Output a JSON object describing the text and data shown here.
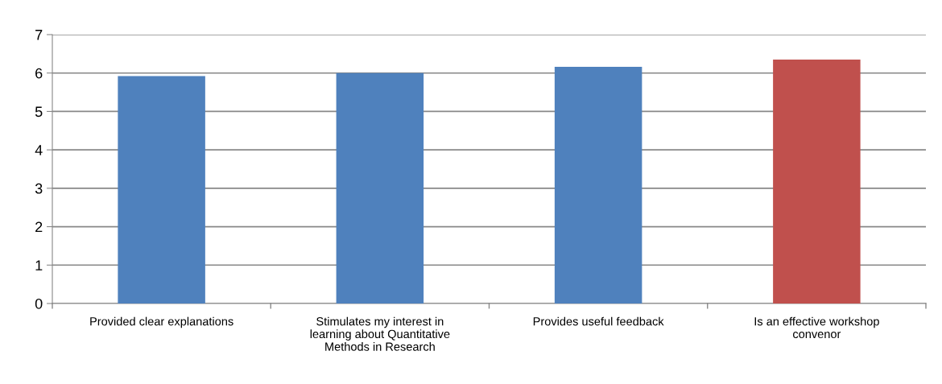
{
  "chart_data": {
    "type": "bar",
    "categories": [
      "Provided clear explanations",
      "Stimulates my interest in\nlearning about Quantitative\nMethods in Research",
      "Provides useful feedback",
      "Is an effective workshop\nconvenor"
    ],
    "values": [
      5.92,
      6.0,
      6.16,
      6.35
    ],
    "colors": [
      "#4f81bd",
      "#4f81bd",
      "#4f81bd",
      "#c0504d"
    ],
    "ylim": [
      0,
      7
    ],
    "yticks": [
      0,
      1,
      2,
      3,
      4,
      5,
      6,
      7
    ],
    "grid": "y",
    "legend": false
  }
}
